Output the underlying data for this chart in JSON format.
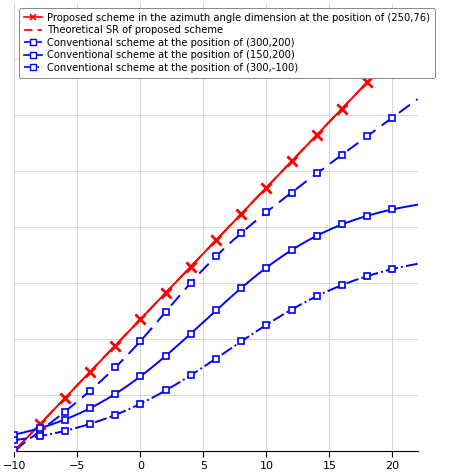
{
  "legend_entries": [
    "Proposed scheme in the azimuth angle dimension at the position of (250,76)",
    "Theoretical SR of proposed scheme",
    "Conventional scheme at the position of (300,200)",
    "Conventional scheme at the position of (150,200)",
    "Conventional scheme at the position of (300,-100)"
  ],
  "snr_points": [
    -10,
    -8,
    -6,
    -4,
    -2,
    0,
    2,
    4,
    6,
    8,
    10,
    12,
    14,
    16,
    18,
    20
  ],
  "colors": {
    "proposed": "#FF0000",
    "theoretical": "#FF0000",
    "conv1": "#0000FF",
    "conv2": "#0000FF",
    "conv3": "#0000FF"
  },
  "background_color": "#FFFFFF",
  "grid_color": "#D0D0D0",
  "legend_fontsize": 7.2,
  "xlim": [
    -10,
    22
  ],
  "ylim": [
    0,
    1.6
  ],
  "xticks": [
    -10,
    -5,
    0,
    5,
    10,
    15,
    20
  ],
  "yticks": []
}
